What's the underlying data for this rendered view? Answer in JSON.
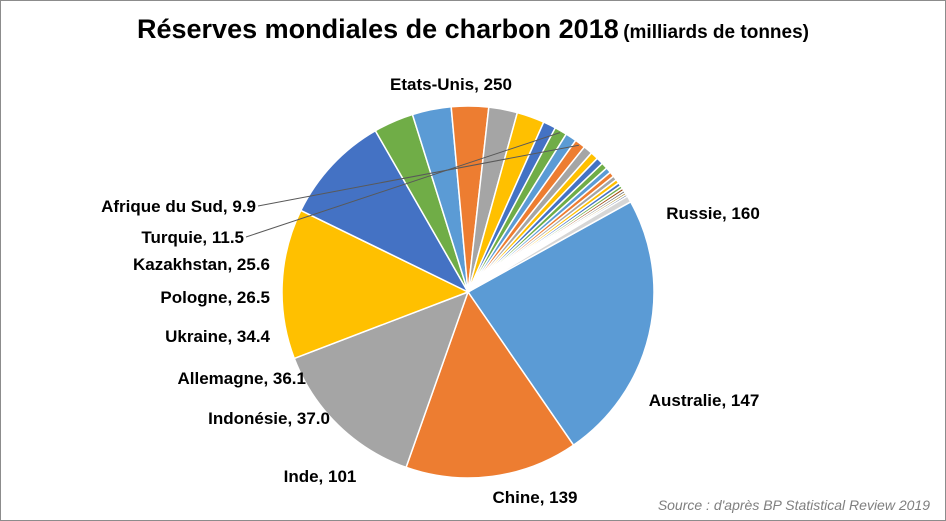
{
  "chart_data": {
    "type": "pie",
    "title": "Réserves mondiales de charbon 2018",
    "subtitle": "(milliards de tonnes)",
    "source": "Source : d'après BP Statistical Review 2019",
    "legend": "none",
    "slices": [
      {
        "label": "Etats-Unis",
        "value": 250,
        "display": "250",
        "color": "#5b9bd5"
      },
      {
        "label": "Russie",
        "value": 160,
        "display": "160",
        "color": "#ed7d31"
      },
      {
        "label": "Australie",
        "value": 147,
        "display": "147",
        "color": "#a5a5a5"
      },
      {
        "label": "Chine",
        "value": 139,
        "display": "139",
        "color": "#ffc000"
      },
      {
        "label": "Inde",
        "value": 101,
        "display": "101",
        "color": "#4472c4"
      },
      {
        "label": "Indonésie",
        "value": 37.0,
        "display": "37.0",
        "color": "#70ad47"
      },
      {
        "label": "Allemagne",
        "value": 36.1,
        "display": "36.1",
        "color": "#5b9bd5"
      },
      {
        "label": "Ukraine",
        "value": 34.4,
        "display": "34.4",
        "color": "#ed7d31"
      },
      {
        "label": "Pologne",
        "value": 26.5,
        "display": "26.5",
        "color": "#a5a5a5"
      },
      {
        "label": "Kazakhstan",
        "value": 25.6,
        "display": "25.6",
        "color": "#ffc000"
      },
      {
        "label": "",
        "value": 11.8,
        "display": "",
        "color": "#4472c4"
      },
      {
        "label": "Turquie",
        "value": 11.5,
        "display": "11.5",
        "color": "#70ad47"
      },
      {
        "label": "",
        "value": 10.4,
        "display": "",
        "color": "#5b9bd5"
      },
      {
        "label": "Afrique du Sud",
        "value": 9.9,
        "display": "9.9",
        "color": "#ed7d31"
      },
      {
        "label": "",
        "value": 8.5,
        "display": "",
        "color": "#a5a5a5"
      },
      {
        "label": "",
        "value": 7.2,
        "display": "",
        "color": "#ffc000"
      },
      {
        "label": "",
        "value": 6.5,
        "display": "",
        "color": "#4472c4"
      },
      {
        "label": "",
        "value": 5.8,
        "display": "",
        "color": "#70ad47"
      },
      {
        "label": "",
        "value": 5.1,
        "display": "",
        "color": "#5b9bd5"
      },
      {
        "label": "",
        "value": 4.6,
        "display": "",
        "color": "#ed7d31"
      },
      {
        "label": "",
        "value": 4.1,
        "display": "",
        "color": "#a5a5a5"
      },
      {
        "label": "",
        "value": 3.6,
        "display": "",
        "color": "#ffc000"
      },
      {
        "label": "",
        "value": 3.2,
        "display": "",
        "color": "#4472c4"
      },
      {
        "label": "",
        "value": 2.8,
        "display": "",
        "color": "#70ad47"
      },
      {
        "label": "",
        "value": 2.5,
        "display": "",
        "color": "#9e480e"
      },
      {
        "label": "",
        "value": 2.2,
        "display": "",
        "color": "#636363"
      },
      {
        "label": "",
        "value": 2.0,
        "display": "",
        "color": "#997300"
      },
      {
        "label": "",
        "value": 1.8,
        "display": "",
        "color": "#264478"
      },
      {
        "label": "",
        "value": 6.0,
        "display": "",
        "color": "#d6d6d6"
      }
    ]
  }
}
